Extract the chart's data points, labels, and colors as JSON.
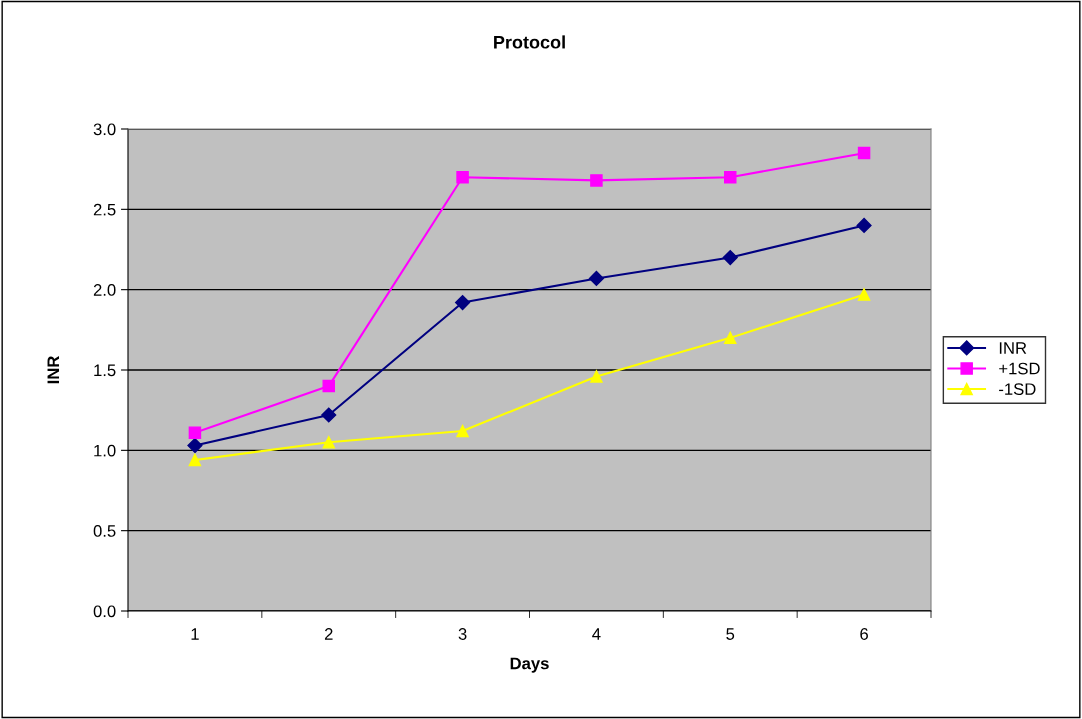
{
  "chart_data": {
    "type": "line",
    "title": "Protocol",
    "xlabel": "Days",
    "ylabel": "INR",
    "categories": [
      "1",
      "2",
      "3",
      "4",
      "5",
      "6"
    ],
    "series": [
      {
        "name": "INR",
        "color": "#000080",
        "marker": "diamond",
        "values": [
          1.03,
          1.22,
          1.92,
          2.07,
          2.2,
          2.4
        ]
      },
      {
        "name": "+1SD",
        "color": "#ff00ff",
        "marker": "square",
        "values": [
          1.11,
          1.4,
          2.7,
          2.68,
          2.7,
          2.85
        ]
      },
      {
        "name": "-1SD",
        "color": "#ffff00",
        "marker": "triangle",
        "values": [
          0.94,
          1.05,
          1.12,
          1.46,
          1.7,
          1.97
        ]
      }
    ],
    "ylim": [
      0,
      3
    ],
    "yticks": [
      {
        "value": 0,
        "label": "0.0"
      },
      {
        "value": 0.5,
        "label": "0.5"
      },
      {
        "value": 1,
        "label": "1.0"
      },
      {
        "value": 1.5,
        "label": "1.5"
      },
      {
        "value": 2,
        "label": "2.0"
      },
      {
        "value": 2.5,
        "label": "2.5"
      },
      {
        "value": 3,
        "label": "3.0"
      }
    ],
    "grid": "y",
    "legend": "right"
  }
}
